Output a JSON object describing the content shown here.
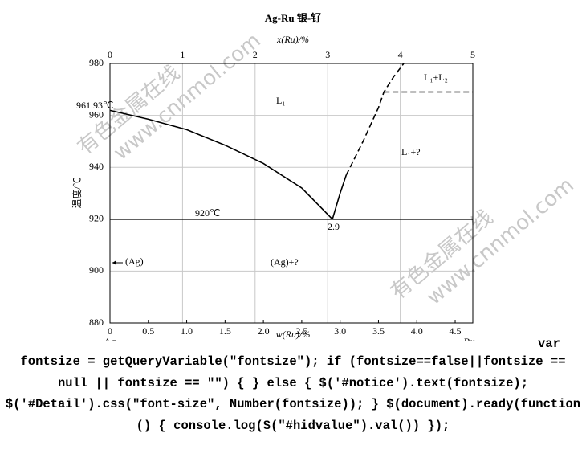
{
  "chart_data": {
    "type": "line",
    "title": "Ag-Ru  银-钌",
    "x_label": "w(Ru)/%",
    "x2_label": "x(Ru)/%",
    "y_label": "温度/℃",
    "corner_labels": [
      "Ag",
      "Ru"
    ],
    "xlim": [
      0,
      4.73
    ],
    "xticks": [
      0,
      0.5,
      {
        "value": 1,
        "label": "1.0"
      },
      1.5,
      {
        "value": 2,
        "label": "2.0"
      },
      2.5,
      {
        "value": 3,
        "label": "3.0"
      },
      3.5,
      {
        "value": 4,
        "label": "4.0"
      },
      4.5
    ],
    "x2lim": [
      0,
      5
    ],
    "x2ticks": [
      0,
      1,
      2,
      3,
      4,
      5
    ],
    "ylim": [
      880,
      980
    ],
    "yticks": [
      880,
      900,
      920,
      940,
      960,
      980
    ],
    "grid": true,
    "series": [
      {
        "color": "#000000",
        "style": "solid",
        "x": [
          0,
          0.5,
          1,
          1.5,
          2,
          2.5,
          2.9
        ],
        "values": [
          961.93,
          958.5,
          954.5,
          948.5,
          941.5,
          932,
          920
        ]
      },
      {
        "color": "#000000",
        "style": "solid",
        "x": [
          2.9,
          3.0,
          3.08
        ],
        "values": [
          920,
          930,
          937
        ]
      },
      {
        "color": "#000000",
        "style": "dashed",
        "x": [
          3.08,
          3.3,
          3.5,
          3.57,
          3.7,
          3.83
        ],
        "values": [
          937,
          950,
          963,
          969,
          975,
          980
        ]
      },
      {
        "color": "#000000",
        "style": "dashed",
        "x": [
          3.57,
          4.73
        ],
        "values": [
          969,
          969
        ]
      },
      {
        "color": "#000000",
        "style": "solid",
        "x": [
          0,
          4.73
        ],
        "values": [
          920,
          920
        ]
      }
    ],
    "annotations": [
      "961.93℃",
      "L₁",
      "L₁+L₂",
      "L₁+?",
      "920℃",
      "2.9",
      "(Ag)",
      "(Ag)+?"
    ]
  },
  "watermark": [
    "有色金属在线",
    "www.cnnmol.com"
  ],
  "code_lines": [
    "var",
    "fontsize = getQueryVariable(\"fontsize\"); if (fontsize==false||fontsize ==",
    "null || fontsize == \"\") { } else { $('#notice').text(fontsize);",
    "$('#Detail').css(\"font-size\", Number(fontsize)); } $(document).ready(function",
    "() { console.log($(\"#hidvalue\").val()) });"
  ]
}
